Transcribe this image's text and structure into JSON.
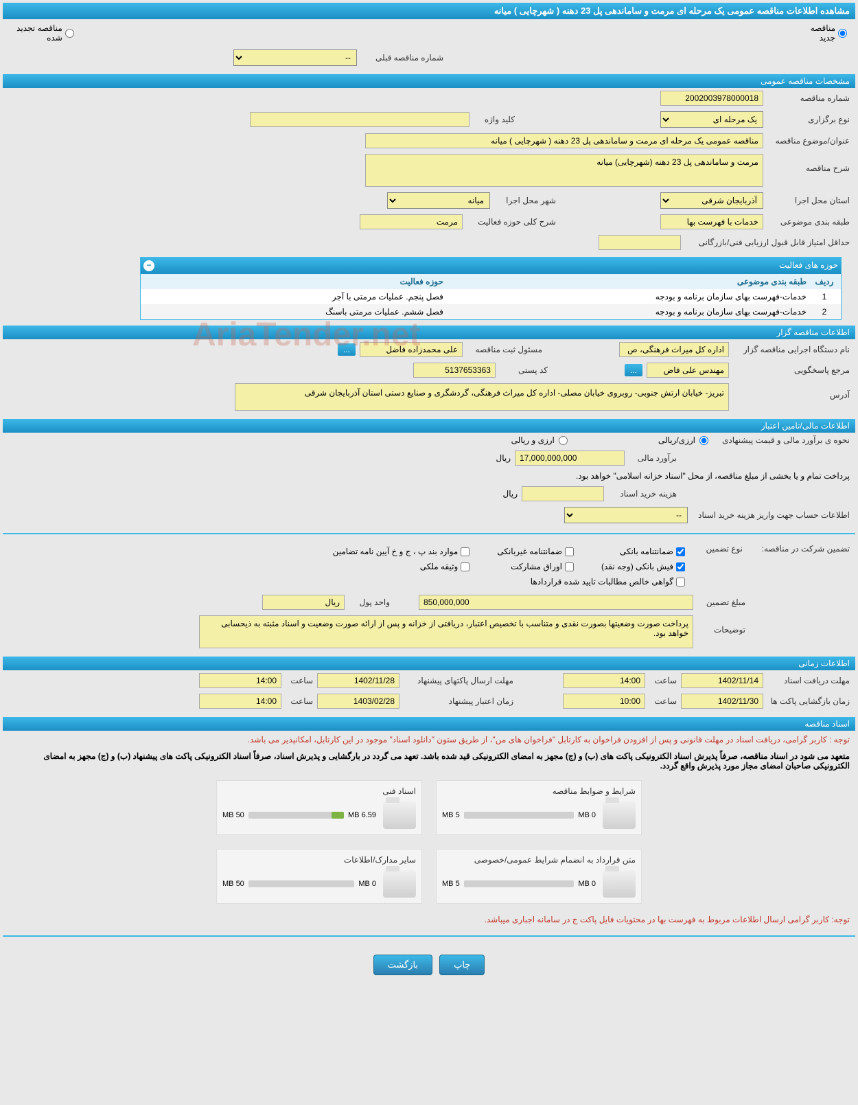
{
  "page_title": "مشاهده اطلاعات مناقصه عمومی یک مرحله ای مرمت و ساماندهی پل 23 دهنه ( شهرچایی ) میانه",
  "tender_status": {
    "new_label": "مناقصه جدید",
    "renewed_label": "مناقصه تجدید شده"
  },
  "prev_number_label": "شماره مناقصه قبلی",
  "prev_number_value": "--",
  "sections": {
    "general": "مشخصات مناقصه عمومی",
    "activities": "حوزه های فعالیت",
    "organizer": "اطلاعات مناقصه گزار",
    "financial": "اطلاعات مالی/تامین اعتبار",
    "timing": "اطلاعات زمانی",
    "documents": "اسناد مناقصه"
  },
  "general": {
    "number_label": "شماره مناقصه",
    "number_value": "2002003978000018",
    "type_label": "نوع برگزاری",
    "type_value": "یک مرحله ای",
    "keyword_label": "کلید واژه",
    "keyword_value": "",
    "subject_label": "عنوان/موضوع مناقصه",
    "subject_value": "مناقصه عمومی یک مرحله ای مرمت و ساماندهی پل 23 دهنه ( شهرچایی ) میانه",
    "desc_label": "شرح مناقصه",
    "desc_value": "مرمت و ساماندهی پل 23 دهنه (شهرچایی) میانه",
    "province_label": "استان محل اجرا",
    "province_value": "آذربایجان شرقی",
    "city_label": "شهر محل اجرا",
    "city_value": "میانه",
    "category_label": "طبقه بندی موضوعی",
    "category_value": "خدمات با فهرست بها",
    "activity_desc_label": "شرح کلی حوزه فعالیت",
    "activity_desc_value": "مرمت",
    "min_score_label": "حداقل امتیاز قابل قبول ارزیابی فنی/بازرگانی",
    "min_score_value": ""
  },
  "activity_table": {
    "col_row": "ردیف",
    "col_category": "طبقه بندی موضوعی",
    "col_activity": "حوزه فعالیت",
    "rows": [
      {
        "n": "1",
        "cat": "خدمات-فهرست بهای سازمان برنامه و بودجه",
        "act": "فصل پنجم.  عملیات مرمتی با آجر"
      },
      {
        "n": "2",
        "cat": "خدمات-فهرست بهای سازمان برنامه و بودجه",
        "act": "فصل ششم. عملیات مرمتی باسنگ"
      }
    ]
  },
  "organizer": {
    "name_label": "نام دستگاه اجرایی مناقصه گزار",
    "name_value": "اداره کل میراث فرهنگی، ص",
    "registrar_label": "مسئول ثبت مناقصه",
    "registrar_value": "علی محمدزاده فاضل",
    "contact_label": "مرجع پاسخگویی",
    "contact_value": "مهندس علی فاض",
    "postal_label": "کد پستی",
    "postal_value": "5137653363",
    "address_label": "آدرس",
    "address_value": "تبریز- خیابان ارتش جنوبی- روبروی خیابان مصلی- اداره کل میراث فرهنگی، گردشگری و صنایع دستی استان آذربایجان شرقی",
    "more_btn": "..."
  },
  "financial": {
    "method_label": "نحوه ی برآورد مالی و قیمت پیشنهادی",
    "method_rial": "ارزی/ریالی",
    "method_both": "ارزی و ریالی",
    "estimate_label": "برآورد مالی",
    "estimate_value": "17,000,000,000",
    "estimate_unit": "ریال",
    "payment_note": "پرداخت تمام و یا بخشی از مبلغ مناقصه، از محل \"اسناد خزانه اسلامی\" خواهد بود.",
    "doc_cost_label": "هزینه خرید اسناد",
    "doc_cost_value": "",
    "doc_cost_unit": "ریال",
    "account_label": "اطلاعات حساب جهت واریز هزینه خرید اسناد",
    "account_value": "--",
    "guarantee_label": "تضمین شرکت در مناقصه:",
    "guarantee_type_label": "نوع تضمین",
    "guarantees": {
      "bank": "ضمانتنامه بانکی",
      "nonbank": "ضمانتنامه غیربانکی",
      "regulation": "موارد بند پ ، ج و خ آیین نامه تضامین",
      "deposit": "فیش بانکی (وجه نقد)",
      "bonds": "اوراق مشارکت",
      "property": "وثیقه ملکی",
      "certificate": "گواهی خالص مطالبات تایید شده قراردادها"
    },
    "amount_label": "مبلغ تضمین",
    "amount_value": "850,000,000",
    "unit_label": "واحد پول",
    "unit_value": "ریال",
    "notes_label": "توضیحات",
    "notes_value": "پرداخت صورت وضعیتها بصورت نقدی و متناسب با تخصیص اعتبار، دریافتی از خزانه و پس از ارائه صورت وضعیت و اسناد مثبته به ذیحسابی خواهد بود."
  },
  "timing": {
    "receive_label": "مهلت دریافت اسناد",
    "receive_date": "1402/11/14",
    "receive_time_label": "ساعت",
    "receive_time": "14:00",
    "submit_label": "مهلت ارسال پاکتهای پیشنهاد",
    "submit_date": "1402/11/28",
    "submit_time": "14:00",
    "open_label": "زمان بازگشایی پاکت ها",
    "open_date": "1402/11/30",
    "open_time": "10:00",
    "validity_label": "زمان اعتبار پیشنهاد",
    "validity_date": "1403/02/28",
    "validity_time": "14:00"
  },
  "documents": {
    "notice1": "توجه : کاربر گرامی، دریافت اسناد در مهلت قانونی و پس از افزودن فراخوان به کارتابل \"فراخوان های من\"، از طریق ستون \"دانلود اسناد\" موجود در این کارتابل، امکانپذیر می باشد.",
    "notice2": "متعهد می شود در اسناد مناقصه، صرفاً پذیرش اسناد الکترونیکی پاکت های (ب) و (ج) مجهز به امضای الکترونیکی قید شده باشد. تعهد می گردد در بارگشایی و پذیرش اسناد، صرفاً اسناد الکترونیکی پاکت های پیشنهاد (ب) و (ج) مجهز به امضای الکترونیکی صاحبان امضای مجاز مورد پذیرش واقع گردد.",
    "boxes": [
      {
        "title": "شرایط و ضوابط مناقصه",
        "used": "0 MB",
        "total": "5 MB",
        "pct": 0
      },
      {
        "title": "اسناد فنی",
        "used": "6.59 MB",
        "total": "50 MB",
        "pct": 13
      },
      {
        "title": "متن قرارداد به انضمام شرایط عمومی/خصوصی",
        "used": "0 MB",
        "total": "5 MB",
        "pct": 0
      },
      {
        "title": "سایر مدارک/اطلاعات",
        "used": "0 MB",
        "total": "50 MB",
        "pct": 0
      }
    ],
    "footer_notice": "توجه: کاربر گرامی ارسال اطلاعات مربوط به فهرست بها در محتویات فایل پاکت ج در سامانه اجباری میباشد."
  },
  "buttons": {
    "print": "چاپ",
    "back": "بازگشت"
  },
  "watermark": "AriaTender.net"
}
